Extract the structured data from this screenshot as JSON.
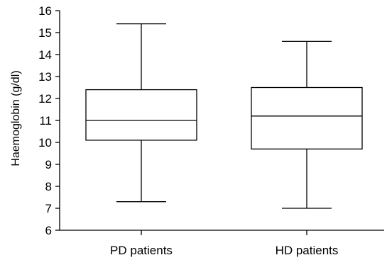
{
  "chart_data": {
    "type": "box",
    "title": "",
    "xlabel": "",
    "ylabel": "Haemoglobin (g/dl)",
    "ylim": [
      6,
      16
    ],
    "yticks": [
      6,
      7,
      8,
      9,
      10,
      11,
      12,
      13,
      14,
      15,
      16
    ],
    "categories": [
      "PD patients",
      "HD patients"
    ],
    "boxes": [
      {
        "name": "PD patients",
        "min": 7.3,
        "q1": 10.1,
        "median": 11.0,
        "q3": 12.4,
        "max": 15.4
      },
      {
        "name": "HD patients",
        "min": 7.0,
        "q1": 9.7,
        "median": 11.2,
        "q3": 12.5,
        "max": 14.6
      }
    ],
    "grid": false,
    "legend": "none"
  }
}
